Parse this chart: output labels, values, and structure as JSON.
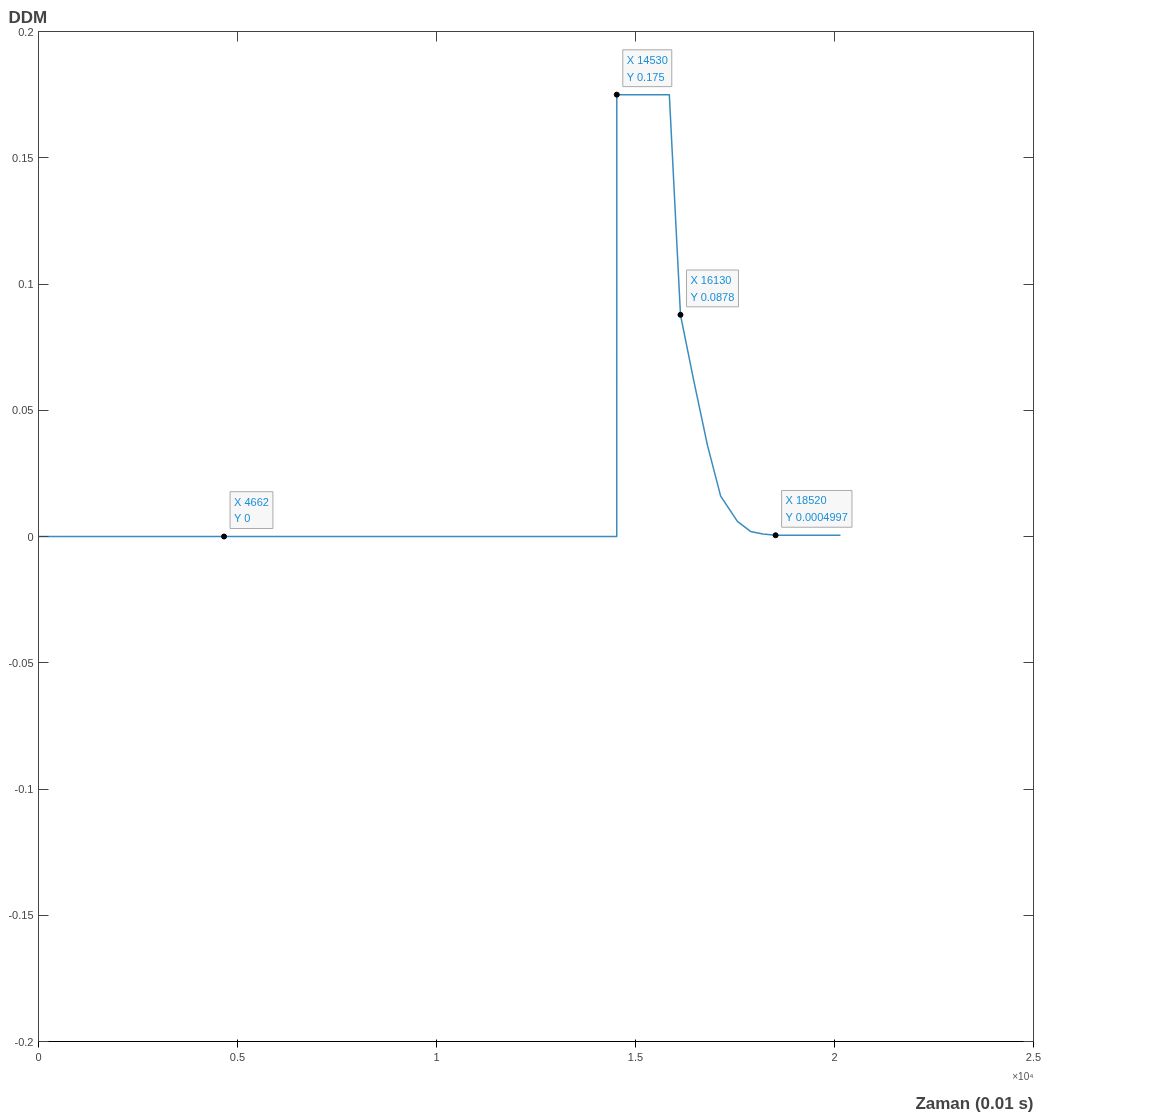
{
  "chart_data": {
    "type": "line",
    "xlabel": "Zaman (0.01 s)",
    "ylabel": "DDM",
    "x": [
      0,
      0.4662,
      1.4529,
      1.453,
      1.5,
      1.585,
      1.613,
      1.646,
      1.681,
      1.714,
      1.756,
      1.789,
      1.82,
      1.852,
      2.015
    ],
    "series": [
      {
        "color": "#3a8cc0",
        "values": [
          0,
          0,
          0,
          0.175,
          0.175,
          0.175,
          0.0878,
          0.062,
          0.036,
          0.016,
          0.006,
          0.002,
          0.001,
          0.0005,
          0.0005
        ]
      }
    ],
    "xlim": [
      0,
      2.5
    ],
    "ylim": [
      -0.2,
      0.2
    ],
    "xticks": [
      0,
      0.5,
      1,
      1.5,
      2,
      2.5
    ],
    "yticks": [
      -0.2,
      -0.15,
      -0.1,
      -0.05,
      0,
      0.05,
      0.1,
      0.15,
      0.2
    ],
    "grid": false,
    "line_style": "solid",
    "marker": "none",
    "annotations": [
      {
        "text": "X 4662\nY 0",
        "x": 0.4662,
        "y": 0
      },
      {
        "text": "X 14530\nY 0.175",
        "x": 1.453,
        "y": 0.175
      },
      {
        "text": "X 16130\nY 0.0878",
        "x": 1.613,
        "y": 0.0878
      },
      {
        "text": "X 18520\nY 0.0004997",
        "x": 1.852,
        "y": 0.0004997
      },
      "×10⁴"
    ]
  }
}
